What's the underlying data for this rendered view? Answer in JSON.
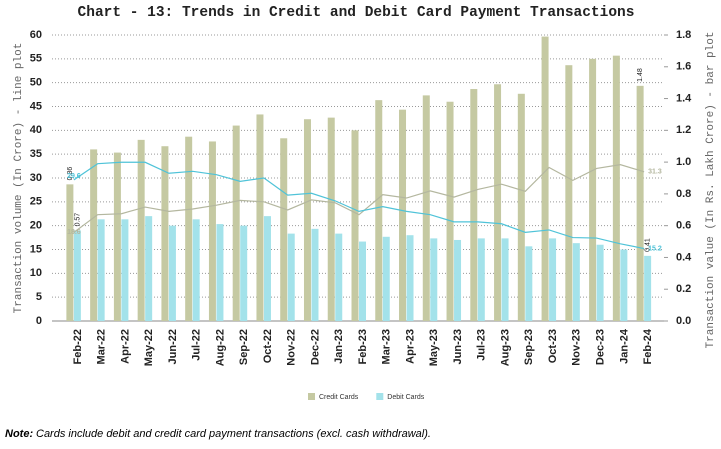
{
  "chart_data": {
    "type": "bar-line",
    "title": "Chart - 13: Trends in Credit and Debit Card Payment Transactions",
    "ylabel": "Transaction volume (In Crore) - line plot",
    "y2label": "Transaction value (In Rs. Lakh Crore) - bar plot",
    "categories": [
      "Feb-22",
      "Mar-22",
      "Apr-22",
      "May-22",
      "Jun-22",
      "Jul-22",
      "Aug-22",
      "Sep-22",
      "Oct-22",
      "Nov-22",
      "Dec-22",
      "Jan-23",
      "Feb-23",
      "Mar-23",
      "Apr-23",
      "May-23",
      "Jun-23",
      "Jul-23",
      "Aug-23",
      "Sep-23",
      "Oct-23",
      "Nov-23",
      "Dec-23",
      "Jan-24",
      "Feb-24"
    ],
    "ylim": [
      0,
      60
    ],
    "yticks": [
      0,
      5,
      10,
      15,
      20,
      25,
      30,
      35,
      40,
      45,
      50,
      55,
      60
    ],
    "y2lim": [
      0,
      1.8
    ],
    "y2ticks": [
      {
        "value": 0,
        "label": "0.0"
      },
      0.2,
      0.4,
      0.6,
      0.8,
      {
        "value": 1,
        "label": "1.0"
      },
      1.2,
      1.4,
      1.6,
      1.8
    ],
    "grid": true,
    "legend": "bottom",
    "series": [
      {
        "name": "Credit Cards",
        "kind": "bar",
        "axis": "y2",
        "color": "#c5c9a2",
        "values": [
          0.86,
          1.08,
          1.06,
          1.14,
          1.1,
          1.16,
          1.13,
          1.23,
          1.3,
          1.15,
          1.27,
          1.28,
          1.2,
          1.39,
          1.33,
          1.42,
          1.38,
          1.46,
          1.49,
          1.43,
          1.79,
          1.61,
          1.65,
          1.67,
          1.48
        ],
        "value_labels": [
          "0.86",
          null,
          null,
          null,
          null,
          null,
          null,
          null,
          null,
          null,
          null,
          null,
          null,
          null,
          null,
          null,
          null,
          null,
          null,
          null,
          null,
          null,
          null,
          null,
          "1.48"
        ]
      },
      {
        "name": "Debit Cards",
        "kind": "bar",
        "axis": "y2",
        "color": "#a3e2ea",
        "values": [
          0.57,
          0.64,
          0.64,
          0.66,
          0.6,
          0.64,
          0.61,
          0.6,
          0.66,
          0.55,
          0.58,
          0.55,
          0.5,
          0.53,
          0.54,
          0.52,
          0.51,
          0.52,
          0.52,
          0.47,
          0.52,
          0.49,
          0.48,
          0.45,
          0.41
        ],
        "value_labels": [
          "0.57",
          null,
          null,
          null,
          null,
          null,
          null,
          null,
          null,
          null,
          null,
          null,
          null,
          null,
          null,
          null,
          null,
          null,
          null,
          null,
          null,
          null,
          null,
          null,
          "0.41"
        ]
      },
      {
        "kind": "line",
        "color": "#b4b79f",
        "values": [
          18.6,
          22.3,
          22.5,
          23.9,
          23,
          23.5,
          24.3,
          25.3,
          25,
          23.3,
          25.4,
          24.8,
          22.3,
          26.5,
          25.8,
          27.3,
          26,
          27.6,
          28.7,
          27.2,
          32.2,
          29.5,
          32,
          32.8,
          31.3
        ],
        "value_labels": [
          "18.6",
          null,
          null,
          null,
          null,
          null,
          null,
          null,
          null,
          null,
          null,
          null,
          null,
          null,
          null,
          null,
          null,
          null,
          null,
          null,
          null,
          null,
          null,
          null,
          "31.3"
        ]
      },
      {
        "kind": "line",
        "color": "#4fc3d8",
        "values": [
          29.6,
          33,
          33.3,
          33.3,
          31,
          31.4,
          30.7,
          29.3,
          30,
          26.4,
          26.8,
          25.2,
          23,
          24,
          23,
          22.3,
          20.8,
          20.8,
          20.4,
          18.6,
          19.1,
          17.5,
          17.4,
          16.2,
          15.2
        ],
        "value_labels": [
          "29.6",
          null,
          null,
          null,
          null,
          null,
          null,
          null,
          null,
          null,
          null,
          null,
          null,
          null,
          null,
          null,
          null,
          null,
          null,
          null,
          null,
          null,
          null,
          null,
          "15.2"
        ]
      }
    ]
  },
  "note": {
    "label": "Note:",
    "text": "Cards include debit and credit card payment transactions (excl. cash withdrawal)."
  }
}
